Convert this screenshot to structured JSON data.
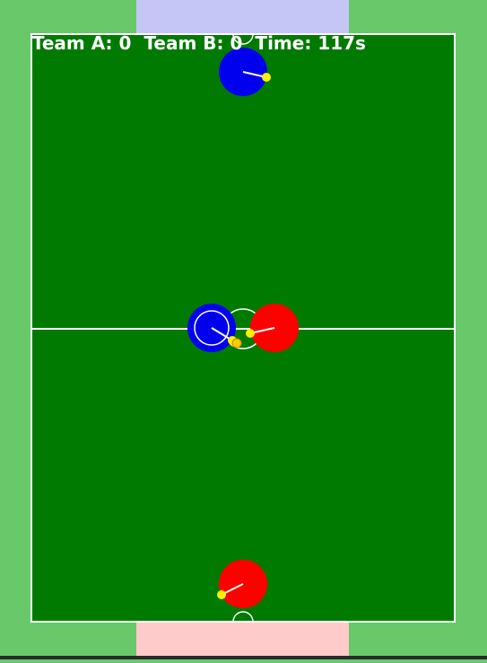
{
  "hud": {
    "team_a": "Team A: 0",
    "team_b": "Team B: 0",
    "time": "Time: 117s"
  },
  "colors": {
    "background": "#69c96a",
    "pitch": "#007a00",
    "lines": "#ffffff",
    "team_a": "#0000ee",
    "team_b": "#ff0000",
    "ball": "#ffee00",
    "goal_zone_top": "#c6c6f6",
    "goal_zone_bottom": "#ffcaca"
  }
}
